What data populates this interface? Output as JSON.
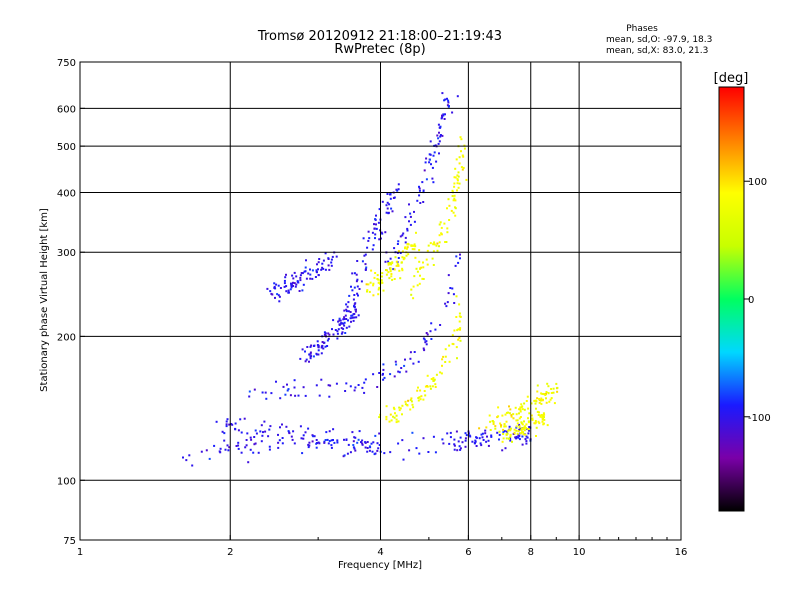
{
  "header": {
    "title_line1": "Tromsø 20120912 21:18:00–21:19:43",
    "title_line2": "RwPretec (8p)"
  },
  "stats": {
    "heading": "Phases",
    "line_o": "mean, sd,O: -97.9, 18.3",
    "line_x": "mean, sd,X:  83.0, 21.3"
  },
  "colorbar": {
    "unit_label": "[deg]",
    "tick_labels": [
      "100",
      "0",
      "-100"
    ],
    "colors": [
      "#000000",
      "#7a00a8",
      "#1a1aff",
      "#00d8ff",
      "#00ff60",
      "#c8ff00",
      "#ffff00",
      "#ff8000",
      "#ff0000"
    ]
  },
  "chart_data": {
    "type": "scatter",
    "title": "Tromsø 20120912 21:18:00–21:19:43",
    "subtitle": "RwPretec (8p)",
    "xlabel": "Frequency [MHz]",
    "ylabel": "Stationary phase Virtual Height [km]",
    "x_scale": "log",
    "y_scale": "log",
    "xlim": [
      1,
      16
    ],
    "ylim": [
      75,
      750
    ],
    "x_ticks": [
      1,
      2,
      4,
      6,
      8,
      10,
      16
    ],
    "x_tick_labels": [
      "1",
      "2",
      "4",
      "6",
      "8",
      "10",
      "16"
    ],
    "x_gridlines": [
      2,
      4,
      6,
      8,
      10
    ],
    "y_ticks": [
      75,
      100,
      200,
      300,
      400,
      500,
      600,
      750
    ],
    "y_tick_labels": [
      "75",
      "100",
      "200",
      "300",
      "400",
      "500",
      "600",
      "750"
    ],
    "y_gridlines": [
      100,
      200,
      300,
      400,
      500,
      600
    ],
    "grid": true,
    "color_quantity": "phase",
    "color_range": [
      -180,
      180
    ],
    "series": [
      {
        "name": "O-mode",
        "mean_phase": -97.9,
        "sd_phase": 18.3,
        "traces": [
          {
            "x": [
              1.5,
              1.8,
              2.0,
              2.2,
              2.5,
              3.0,
              3.5,
              4.0,
              4.5,
              5.0,
              5.5
            ],
            "y": [
              108,
              114,
              117,
              118,
              119,
              118,
              117,
              117,
              118,
              119,
              121
            ]
          },
          {
            "x": [
              1.9,
              2.1,
              2.4,
              2.8,
              3.2,
              3.6,
              4.0
            ],
            "y": [
              132,
              130,
              127,
              124,
              121,
              120,
              121
            ]
          },
          {
            "x": [
              2.2,
              2.6,
              3.0,
              3.4,
              3.8,
              4.2,
              4.6,
              5.0,
              5.5,
              5.8
            ],
            "y": [
              150,
              152,
              153,
              155,
              160,
              168,
              180,
              200,
              240,
              300
            ]
          },
          {
            "x": [
              3.3,
              3.5,
              3.7,
              3.9,
              4.1,
              4.3
            ],
            "y": [
              200,
              240,
              290,
              330,
              370,
              410
            ]
          },
          {
            "x": [
              4.2,
              4.5,
              4.8,
              5.0,
              5.2,
              5.4,
              5.5
            ],
            "y": [
              280,
              330,
              390,
              450,
              520,
              590,
              640
            ]
          },
          {
            "x": [
              2.8,
              3.0,
              3.2,
              3.4,
              3.6
            ],
            "y": [
              185,
              190,
              200,
              215,
              235
            ]
          },
          {
            "x": [
              2.4,
              2.6,
              2.9,
              3.2
            ],
            "y": [
              240,
              255,
              270,
              290
            ]
          },
          {
            "x": [
              5.5,
              6.0,
              6.5,
              7.0,
              7.5,
              8.0
            ],
            "y": [
              120,
              121,
              122,
              123,
              124,
              126
            ]
          }
        ]
      },
      {
        "name": "X-mode",
        "mean_phase": 83.0,
        "sd_phase": 21.3,
        "traces": [
          {
            "x": [
              4.0,
              4.4,
              4.8,
              5.2,
              5.6,
              5.8
            ],
            "y": [
              135,
              140,
              150,
              165,
              190,
              230
            ]
          },
          {
            "x": [
              4.6,
              5.0,
              5.3,
              5.6,
              5.8,
              5.9
            ],
            "y": [
              250,
              290,
              330,
              380,
              450,
              530
            ]
          },
          {
            "x": [
              3.8,
              4.1,
              4.4,
              4.7
            ],
            "y": [
              250,
              270,
              290,
              310
            ]
          },
          {
            "x": [
              6.5,
              7.0,
              7.5,
              8.0,
              8.5,
              9.0
            ],
            "y": [
              130,
              135,
              140,
              145,
              150,
              155
            ]
          },
          {
            "x": [
              7.0,
              7.5,
              8.0,
              8.5
            ],
            "y": [
              125,
              128,
              132,
              136
            ]
          }
        ]
      }
    ]
  }
}
